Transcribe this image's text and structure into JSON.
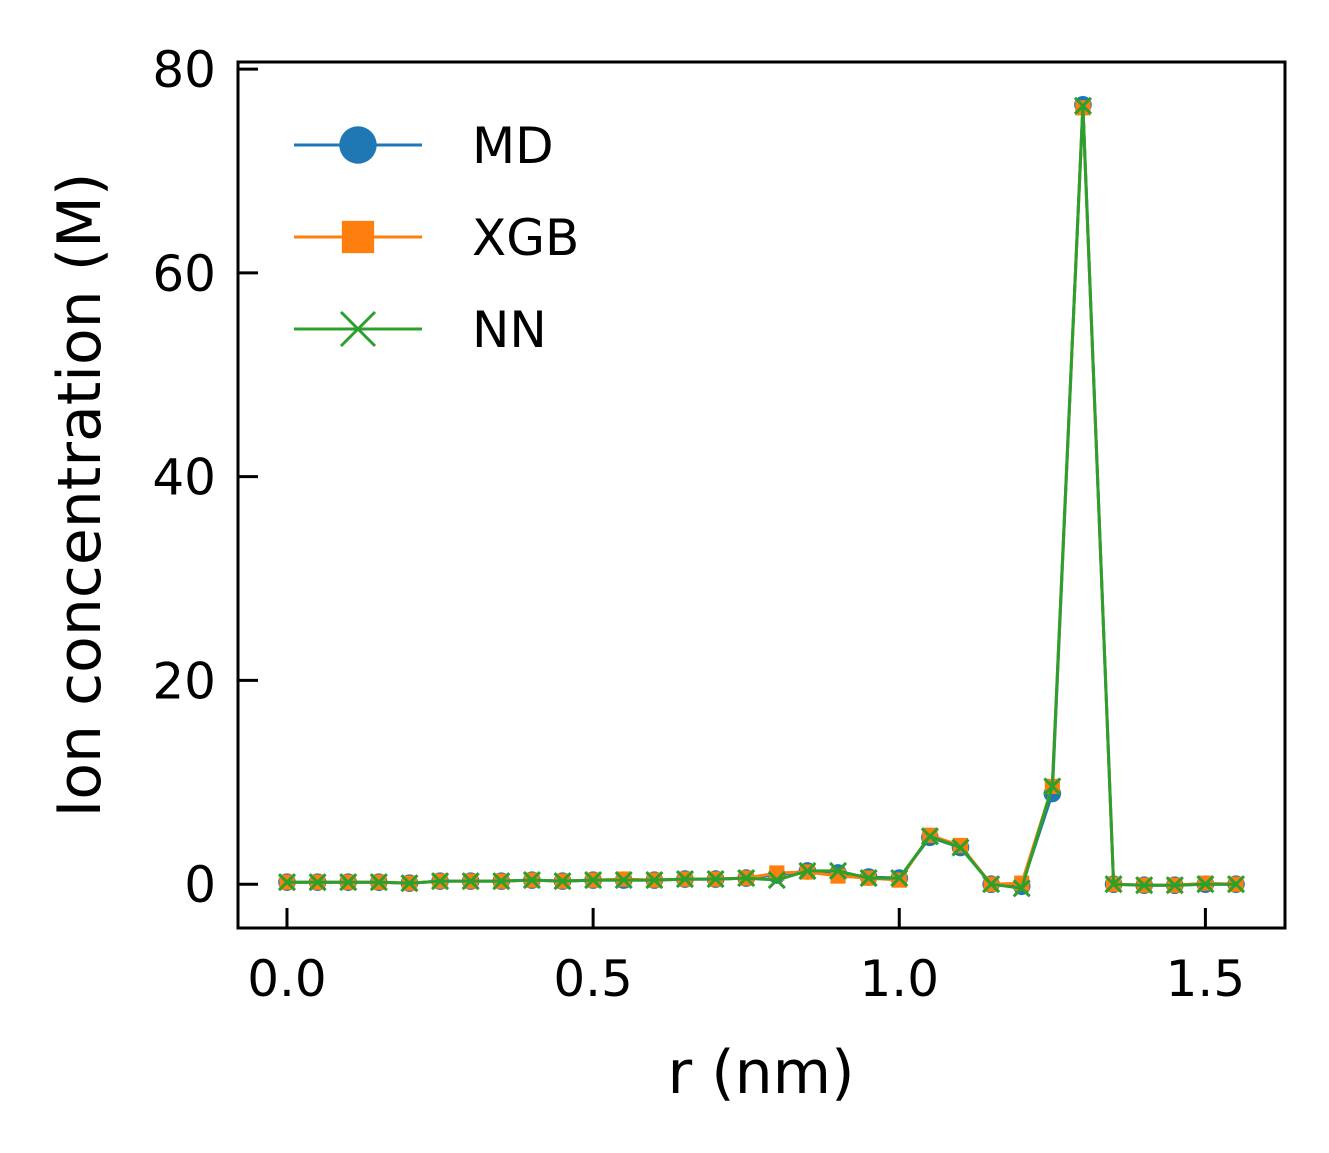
{
  "chart_data": {
    "type": "line",
    "title": "",
    "xlabel": "r (nm)",
    "ylabel": "Ion concentration (M)",
    "xlim": [
      -0.08,
      1.63
    ],
    "ylim": [
      -4.3,
      80.7
    ],
    "xticks": [
      0.0,
      0.5,
      1.0,
      1.5
    ],
    "xtick_labels": [
      "0.0",
      "0.5",
      "1.0",
      "1.5"
    ],
    "yticks": [
      0,
      20,
      40,
      60,
      80
    ],
    "ytick_labels": [
      "0",
      "20",
      "40",
      "60",
      "80"
    ],
    "grid": false,
    "legend": "top-left",
    "x": [
      0.0,
      0.05,
      0.1,
      0.15,
      0.2,
      0.25,
      0.3,
      0.35,
      0.4,
      0.45,
      0.5,
      0.55,
      0.6,
      0.65,
      0.7,
      0.75,
      0.8,
      0.85,
      0.9,
      0.95,
      1.0,
      1.05,
      1.1,
      1.15,
      1.2,
      1.25,
      1.3,
      1.35,
      1.4,
      1.45,
      1.5,
      1.55
    ],
    "series": [
      {
        "name": "MD",
        "color": "#1f77b4",
        "marker": "circle",
        "values": [
          0.2,
          0.2,
          0.2,
          0.2,
          0.1,
          0.3,
          0.3,
          0.3,
          0.4,
          0.3,
          0.4,
          0.4,
          0.4,
          0.5,
          0.5,
          0.6,
          0.9,
          1.3,
          1.1,
          0.7,
          0.6,
          4.6,
          3.6,
          0.0,
          -0.2,
          8.9,
          76.5,
          0.0,
          -0.1,
          -0.1,
          0.0,
          0.0
        ]
      },
      {
        "name": "XGB",
        "color": "#ff7f0e",
        "marker": "square",
        "values": [
          0.2,
          0.2,
          0.2,
          0.2,
          0.1,
          0.3,
          0.3,
          0.3,
          0.4,
          0.3,
          0.4,
          0.5,
          0.4,
          0.5,
          0.5,
          0.6,
          1.1,
          1.2,
          0.8,
          0.6,
          0.4,
          4.8,
          3.8,
          0.0,
          0.1,
          9.6,
          76.2,
          0.0,
          -0.1,
          -0.1,
          0.1,
          0.0
        ]
      },
      {
        "name": "NN",
        "color": "#2ca02c",
        "marker": "x",
        "values": [
          0.2,
          0.2,
          0.2,
          0.2,
          0.1,
          0.3,
          0.3,
          0.3,
          0.4,
          0.3,
          0.4,
          0.4,
          0.4,
          0.5,
          0.5,
          0.6,
          0.4,
          1.3,
          1.3,
          0.6,
          0.6,
          4.7,
          3.6,
          0.0,
          -0.4,
          9.6,
          76.4,
          0.0,
          -0.1,
          -0.1,
          0.0,
          0.0
        ]
      }
    ]
  }
}
